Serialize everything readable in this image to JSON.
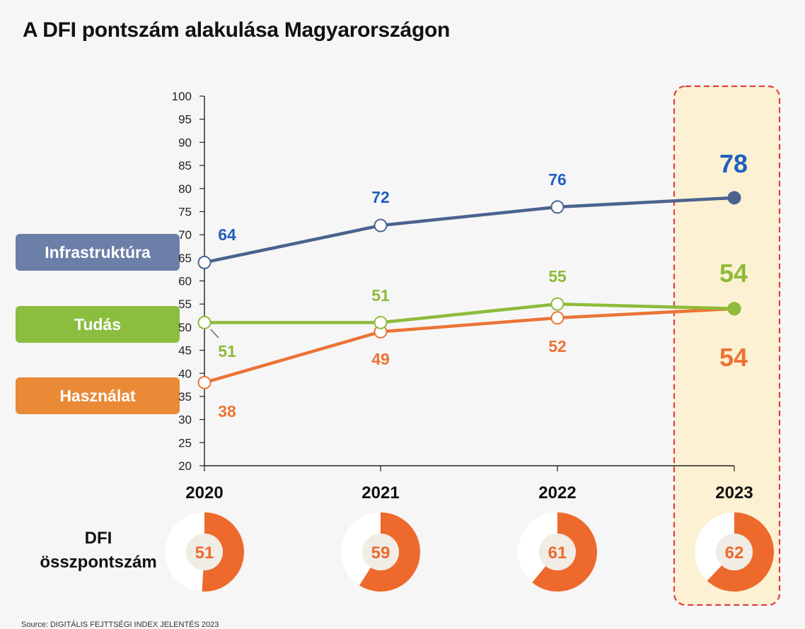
{
  "page": {
    "title": "A DFI pontszám alakulása Magyarországon"
  },
  "legend": [
    {
      "label": "Infrastruktúra",
      "color": "#6b7fa8"
    },
    {
      "label": "Tudás",
      "color": "#8bbd3f"
    },
    {
      "label": "Használat",
      "color": "#ea8a36"
    }
  ],
  "dfi": {
    "label_line1": "DFI",
    "label_line2": "összpontszám",
    "values": [
      51,
      59,
      61,
      62
    ],
    "ring_color": "#ed6a2c"
  },
  "chart_data": {
    "type": "line",
    "title": "A DFI pontszám alakulása Magyarországon",
    "categories": [
      "2020",
      "2021",
      "2022",
      "2023"
    ],
    "ylim": [
      20,
      100
    ],
    "yticks": [
      20,
      25,
      30,
      35,
      40,
      45,
      50,
      55,
      60,
      65,
      70,
      75,
      80,
      85,
      90,
      95,
      100
    ],
    "highlight_category": "2023",
    "series": [
      {
        "name": "Infrastruktúra",
        "values": [
          64,
          72,
          76,
          78
        ],
        "line_color": "#4a6390",
        "label_color": "#1f5fbf"
      },
      {
        "name": "Tudás",
        "values": [
          51,
          51,
          55,
          54
        ],
        "line_color": "#8dbb3a",
        "label_color": "#8dbb3a"
      },
      {
        "name": "Használat",
        "values": [
          38,
          49,
          52,
          54
        ],
        "line_color": "#ec7336",
        "label_color": "#ec7336"
      }
    ]
  },
  "footer": {
    "source": "Source: DIGITÁLIS FEJTTSÉGI INDEX JELENTÉS 2023"
  }
}
